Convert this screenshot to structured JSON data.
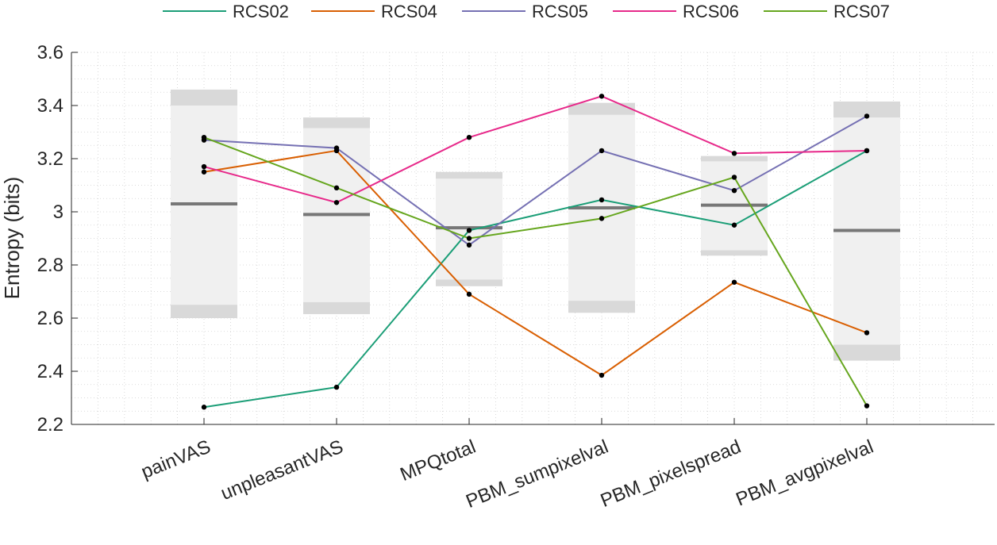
{
  "chart_data": {
    "type": "line",
    "categories": [
      "painVAS",
      "unpleasantVAS",
      "MPQtotal",
      "PBM_sumpixelval",
      "PBM_pixelspread",
      "PBM_avgpixelval"
    ],
    "ylabel": "Entropy (bits)",
    "ylim": [
      2.2,
      3.6
    ],
    "yticks": [
      2.2,
      2.4,
      2.6,
      2.8,
      3,
      3.2,
      3.4,
      3.6
    ],
    "ytick_labels": [
      "2.2",
      "2.4",
      "2.6",
      "2.8",
      "3",
      "3.2",
      "3.4",
      "3.6"
    ],
    "grid": "on (minor dotted)",
    "legend_position": "top, horizontal",
    "series": [
      {
        "name": "RCS02",
        "color": "#1b9e77",
        "values": [
          2.265,
          2.34,
          2.93,
          3.045,
          2.95,
          3.23
        ]
      },
      {
        "name": "RCS04",
        "color": "#d95f02",
        "values": [
          3.15,
          3.23,
          2.69,
          2.385,
          2.735,
          2.545
        ]
      },
      {
        "name": "RCS05",
        "color": "#7570b3",
        "values": [
          3.27,
          3.24,
          2.875,
          3.23,
          3.08,
          3.36
        ]
      },
      {
        "name": "RCS06",
        "color": "#e7298a",
        "values": [
          3.17,
          3.035,
          3.28,
          3.435,
          3.22,
          3.23
        ]
      },
      {
        "name": "RCS07",
        "color": "#66a61e",
        "values": [
          3.28,
          3.09,
          2.9,
          2.975,
          3.13,
          2.27
        ]
      }
    ],
    "null_distribution": [
      {
        "category": "painVAS",
        "outer": [
          2.6,
          3.46
        ],
        "inner": [
          2.65,
          3.4
        ],
        "median": 3.03
      },
      {
        "category": "unpleasantVAS",
        "outer": [
          2.615,
          3.355
        ],
        "inner": [
          2.66,
          3.315
        ],
        "median": 2.99
      },
      {
        "category": "MPQtotal",
        "outer": [
          2.72,
          3.15
        ],
        "inner": [
          2.745,
          3.125
        ],
        "median": 2.94
      },
      {
        "category": "PBM_sumpixelval",
        "outer": [
          2.62,
          3.41
        ],
        "inner": [
          2.665,
          3.365
        ],
        "median": 3.015
      },
      {
        "category": "PBM_pixelspread",
        "outer": [
          2.835,
          3.21
        ],
        "inner": [
          2.855,
          3.19
        ],
        "median": 3.025
      },
      {
        "category": "PBM_avgpixelval",
        "outer": [
          2.44,
          3.415
        ],
        "inner": [
          2.5,
          3.355
        ],
        "median": 2.93
      }
    ],
    "colors": {
      "band_outer": "#d9d9d9",
      "band_inner": "#f0f0f0",
      "median": "#777777",
      "marker": "#000000",
      "axis": "#262626",
      "grid": "#d0d0d0"
    }
  }
}
